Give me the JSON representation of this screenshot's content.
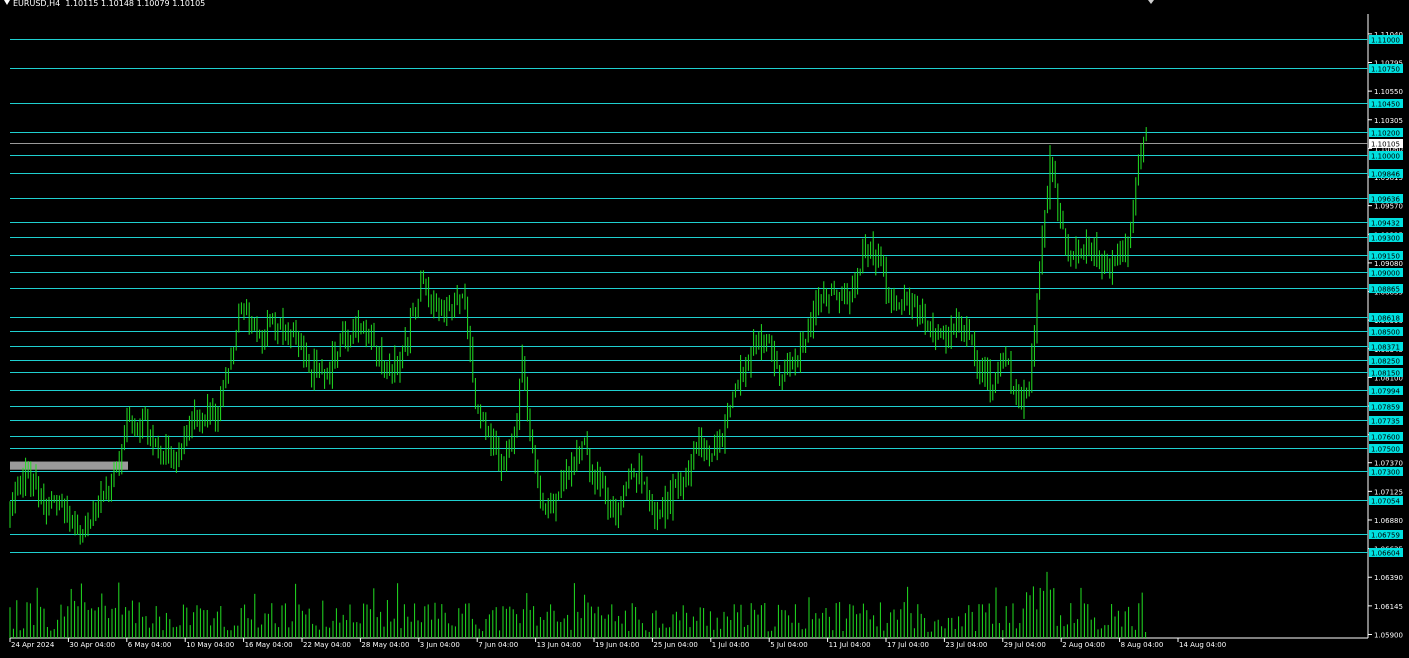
{
  "window": {
    "symbol_timeframe": "EURUSD,H4",
    "ohlc": "1.10115 1.10148 1.10079 1.10105"
  },
  "colors": {
    "background": "#000000",
    "candle": "#22e022",
    "level_line": "#1fd0d0",
    "level_label_bg": "#00e0e0",
    "axis_text": "#ffffff",
    "zone": "#9a9a9a",
    "bid_line": "#9a9a9a"
  },
  "chart_data": {
    "type": "candlestick",
    "ylim": [
      1.0587,
      1.1121
    ],
    "price_ticks": [
      "1.11040",
      "1.10795",
      "1.10550",
      "1.10305",
      "1.10060",
      "1.09815",
      "1.09570",
      "1.09325",
      "1.09080",
      "1.08835",
      "1.08590",
      "1.08345",
      "1.08100",
      "1.07855",
      "1.07610",
      "1.07370",
      "1.07125",
      "1.06880",
      "1.06635",
      "1.06390",
      "1.06145",
      "1.05900"
    ],
    "level_labels": [
      "1.11000",
      "1.10750",
      "1.10450",
      "1.10200",
      "1.10000",
      "1.09846",
      "1.09636",
      "1.09432",
      "1.09300",
      "1.09150",
      "1.09000",
      "1.08865",
      "1.08618",
      "1.08500",
      "1.08371",
      "1.08250",
      "1.08150",
      "1.07994",
      "1.07859",
      "1.07735",
      "1.07600",
      "1.07500",
      "1.07300",
      "1.07054",
      "1.06759",
      "1.06604"
    ],
    "current_price": "1.10105",
    "time_labels": [
      "24 Apr 2024",
      "30 Apr 04:00",
      "6 May 04:00",
      "10 May 04:00",
      "16 May 04:00",
      "22 May 04:00",
      "28 May 04:00",
      "3 Jun 04:00",
      "7 Jun 04:00",
      "13 Jun 04:00",
      "19 Jun 04:00",
      "25 Jun 04:00",
      "1 Jul 04:00",
      "5 Jul 04:00",
      "11 Jul 04:00",
      "17 Jul 04:00",
      "23 Jul 04:00",
      "29 Jul 04:00",
      "2 Aug 04:00",
      "8 Aug 04:00",
      "14 Aug 04:00"
    ],
    "zone": {
      "high": 1.0738,
      "low": 1.0731
    },
    "path_points": [
      [
        0,
        1.0693
      ],
      [
        18,
        1.073
      ],
      [
        35,
        1.0702
      ],
      [
        55,
        1.0698
      ],
      [
        70,
        1.0672
      ],
      [
        90,
        1.0712
      ],
      [
        108,
        1.0728
      ],
      [
        118,
        1.0778
      ],
      [
        135,
        1.0768
      ],
      [
        152,
        1.0748
      ],
      [
        165,
        1.0738
      ],
      [
        178,
        1.0775
      ],
      [
        195,
        1.078
      ],
      [
        210,
        1.0785
      ],
      [
        232,
        1.087
      ],
      [
        250,
        1.0848
      ],
      [
        262,
        1.0858
      ],
      [
        280,
        1.0848
      ],
      [
        300,
        1.0818
      ],
      [
        315,
        1.0808
      ],
      [
        330,
        1.084
      ],
      [
        350,
        1.0855
      ],
      [
        365,
        1.0835
      ],
      [
        380,
        1.081
      ],
      [
        395,
        1.0838
      ],
      [
        412,
        1.0893
      ],
      [
        425,
        1.0865
      ],
      [
        440,
        1.087
      ],
      [
        455,
        1.0878
      ],
      [
        465,
        1.0795
      ],
      [
        478,
        1.0755
      ],
      [
        492,
        1.0738
      ],
      [
        505,
        1.0762
      ],
      [
        512,
        1.082
      ],
      [
        522,
        1.0755
      ],
      [
        535,
        1.069
      ],
      [
        548,
        1.0712
      ],
      [
        560,
        1.0735
      ],
      [
        575,
        1.0748
      ],
      [
        590,
        1.0715
      ],
      [
        605,
        1.069
      ],
      [
        618,
        1.0718
      ],
      [
        630,
        1.0732
      ],
      [
        645,
        1.069
      ],
      [
        660,
        1.0705
      ],
      [
        675,
        1.0722
      ],
      [
        688,
        1.076
      ],
      [
        700,
        1.0738
      ],
      [
        715,
        1.0765
      ],
      [
        728,
        1.0805
      ],
      [
        742,
        1.0835
      ],
      [
        755,
        1.0842
      ],
      [
        770,
        1.0812
      ],
      [
        785,
        1.0825
      ],
      [
        798,
        1.0848
      ],
      [
        810,
        1.0878
      ],
      [
        825,
        1.0888
      ],
      [
        840,
        1.0875
      ],
      [
        855,
        1.092
      ],
      [
        870,
        1.0915
      ],
      [
        882,
        1.087
      ],
      [
        895,
        1.0875
      ],
      [
        910,
        1.0865
      ],
      [
        925,
        1.0842
      ],
      [
        940,
        1.085
      ],
      [
        955,
        1.0855
      ],
      [
        968,
        1.0815
      ],
      [
        980,
        1.0808
      ],
      [
        995,
        1.0825
      ],
      [
        1005,
        1.08
      ],
      [
        1012,
        1.0788
      ],
      [
        1020,
        1.0805
      ],
      [
        1030,
        1.0905
      ],
      [
        1040,
        1.099
      ],
      [
        1048,
        1.0955
      ],
      [
        1058,
        1.0915
      ],
      [
        1070,
        1.0912
      ],
      [
        1080,
        1.092
      ],
      [
        1092,
        1.0905
      ],
      [
        1105,
        1.091
      ],
      [
        1118,
        1.092
      ],
      [
        1128,
        1.0985
      ],
      [
        1138,
        1.1025
      ],
      [
        1148,
        1.101
      ]
    ],
    "volume_seed": 37
  }
}
